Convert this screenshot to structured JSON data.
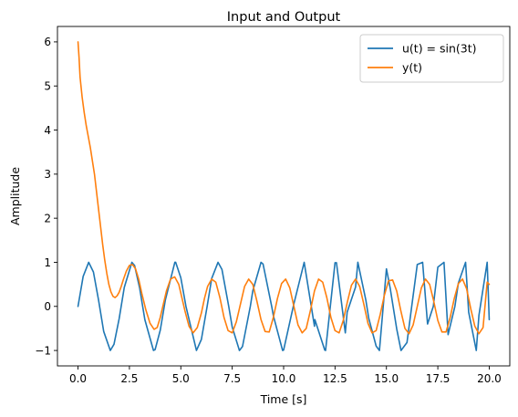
{
  "chart_data": {
    "type": "line",
    "title": "Input and Output",
    "xlabel": "Time [s]",
    "ylabel": "Amplitude",
    "xlim": [
      -1.0,
      21.0
    ],
    "ylim": [
      -1.35,
      6.35
    ],
    "xticks": [
      0.0,
      2.5,
      5.0,
      7.5,
      10.0,
      12.5,
      15.0,
      17.5,
      20.0
    ],
    "xtick_labels": [
      "0.0",
      "2.5",
      "5.0",
      "7.5",
      "10.0",
      "12.5",
      "15.0",
      "17.5",
      "20.0"
    ],
    "yticks": [
      -1,
      0,
      1,
      2,
      3,
      4,
      5,
      6
    ],
    "ytick_labels": [
      "−1",
      "0",
      "1",
      "2",
      "3",
      "4",
      "5",
      "6"
    ],
    "grid": false,
    "legend_position": "top-right",
    "series": [
      {
        "name": "u(t) = sin(3t)",
        "color": "#1f77b4",
        "x": [
          0.0,
          0.25,
          0.52,
          0.75,
          1.0,
          1.25,
          1.57,
          1.75,
          2.0,
          2.25,
          2.62,
          2.75,
          3.0,
          3.25,
          3.67,
          3.75,
          4.0,
          4.25,
          4.71,
          4.75,
          5.0,
          5.25,
          5.76,
          6.0,
          6.28,
          6.5,
          6.81,
          7.0,
          7.33,
          7.5,
          7.85,
          8.0,
          8.38,
          8.5,
          8.9,
          9.0,
          9.42,
          9.5,
          9.95,
          10.0,
          10.47,
          10.5,
          11.0,
          11.5,
          11.52,
          12.0,
          12.04,
          12.5,
          12.57,
          13.0,
          13.09,
          13.5,
          13.61,
          14.0,
          14.14,
          14.5,
          14.66,
          15.0,
          15.18,
          15.5,
          15.71,
          16.0,
          16.23,
          16.5,
          16.76,
          17.0,
          17.28,
          17.5,
          17.8,
          18.0,
          18.33,
          18.5,
          18.85,
          19.0,
          19.37,
          19.5,
          19.9,
          20.0
        ],
        "y": [
          0.0,
          0.68,
          1.0,
          0.78,
          0.14,
          -0.57,
          -1.0,
          -0.86,
          -0.28,
          0.43,
          1.0,
          0.93,
          0.41,
          -0.3,
          -1.0,
          -0.98,
          -0.54,
          0.15,
          1.0,
          1.0,
          0.65,
          0.0,
          -1.0,
          -0.75,
          0.0,
          0.63,
          1.0,
          0.84,
          0.0,
          -0.47,
          -1.0,
          -0.91,
          0.0,
          0.35,
          1.0,
          0.96,
          0.0,
          -0.21,
          -1.0,
          -0.99,
          0.0,
          0.06,
          1.0,
          -0.45,
          -0.3,
          -0.99,
          -1.0,
          0.99,
          0.99,
          -0.6,
          -0.13,
          0.44,
          1.0,
          0.14,
          -0.27,
          -0.9,
          -1.0,
          0.85,
          0.42,
          -0.51,
          -1.0,
          -0.82,
          0.0,
          0.95,
          1.0,
          -0.4,
          0.0,
          0.89,
          1.0,
          -0.64,
          0.0,
          0.53,
          1.0,
          -0.13,
          -1.0,
          -0.2,
          1.0,
          -0.3
        ]
      },
      {
        "name": "y(t)",
        "color": "#ff7f0e",
        "x": [
          0.0,
          0.05,
          0.1,
          0.2,
          0.3,
          0.4,
          0.5,
          0.6,
          0.8,
          1.0,
          1.1,
          1.2,
          1.3,
          1.4,
          1.5,
          1.6,
          1.7,
          1.8,
          1.9,
          2.0,
          2.1,
          2.2,
          2.35,
          2.5,
          2.65,
          2.8,
          2.95,
          3.1,
          3.3,
          3.5,
          3.7,
          3.85,
          4.0,
          4.15,
          4.3,
          4.5,
          4.7,
          4.9,
          5.05,
          5.2,
          5.4,
          5.6,
          5.8,
          6.0,
          6.15,
          6.3,
          6.5,
          6.7,
          6.9,
          7.1,
          7.3,
          7.5,
          7.7,
          7.9,
          8.1,
          8.3,
          8.5,
          8.7,
          8.9,
          9.1,
          9.3,
          9.5,
          9.7,
          9.9,
          10.1,
          10.3,
          10.5,
          10.7,
          10.9,
          11.1,
          11.3,
          11.5,
          11.7,
          11.9,
          12.1,
          12.3,
          12.5,
          12.7,
          12.9,
          13.1,
          13.3,
          13.5,
          13.7,
          13.9,
          14.1,
          14.3,
          14.5,
          14.7,
          14.9,
          15.1,
          15.3,
          15.5,
          15.7,
          15.9,
          16.1,
          16.3,
          16.5,
          16.7,
          16.9,
          17.1,
          17.3,
          17.5,
          17.7,
          17.9,
          18.1,
          18.3,
          18.5,
          18.7,
          18.9,
          19.1,
          19.3,
          19.5,
          19.7,
          19.9,
          20.0
        ],
        "y": [
          6.0,
          5.65,
          5.2,
          4.75,
          4.4,
          4.1,
          3.85,
          3.6,
          3.0,
          2.2,
          1.8,
          1.4,
          1.05,
          0.75,
          0.5,
          0.33,
          0.23,
          0.2,
          0.24,
          0.32,
          0.45,
          0.6,
          0.8,
          0.93,
          0.95,
          0.85,
          0.62,
          0.3,
          -0.08,
          -0.38,
          -0.52,
          -0.48,
          -0.25,
          0.05,
          0.35,
          0.62,
          0.67,
          0.5,
          0.2,
          -0.1,
          -0.45,
          -0.6,
          -0.48,
          -0.15,
          0.18,
          0.45,
          0.62,
          0.55,
          0.2,
          -0.25,
          -0.55,
          -0.6,
          -0.35,
          0.05,
          0.45,
          0.62,
          0.5,
          0.12,
          -0.3,
          -0.57,
          -0.58,
          -0.25,
          0.18,
          0.52,
          0.62,
          0.42,
          0.0,
          -0.42,
          -0.6,
          -0.5,
          -0.1,
          0.35,
          0.62,
          0.55,
          0.2,
          -0.25,
          -0.55,
          -0.6,
          -0.32,
          0.1,
          0.48,
          0.62,
          0.45,
          0.05,
          -0.38,
          -0.6,
          -0.55,
          -0.18,
          0.25,
          0.58,
          0.6,
          0.35,
          -0.1,
          -0.5,
          -0.62,
          -0.42,
          0.0,
          0.42,
          0.62,
          0.5,
          0.12,
          -0.32,
          -0.58,
          -0.58,
          -0.25,
          0.18,
          0.52,
          0.62,
          0.4,
          -0.05,
          -0.45,
          -0.62,
          -0.48,
          0.55,
          0.5
        ]
      }
    ]
  }
}
